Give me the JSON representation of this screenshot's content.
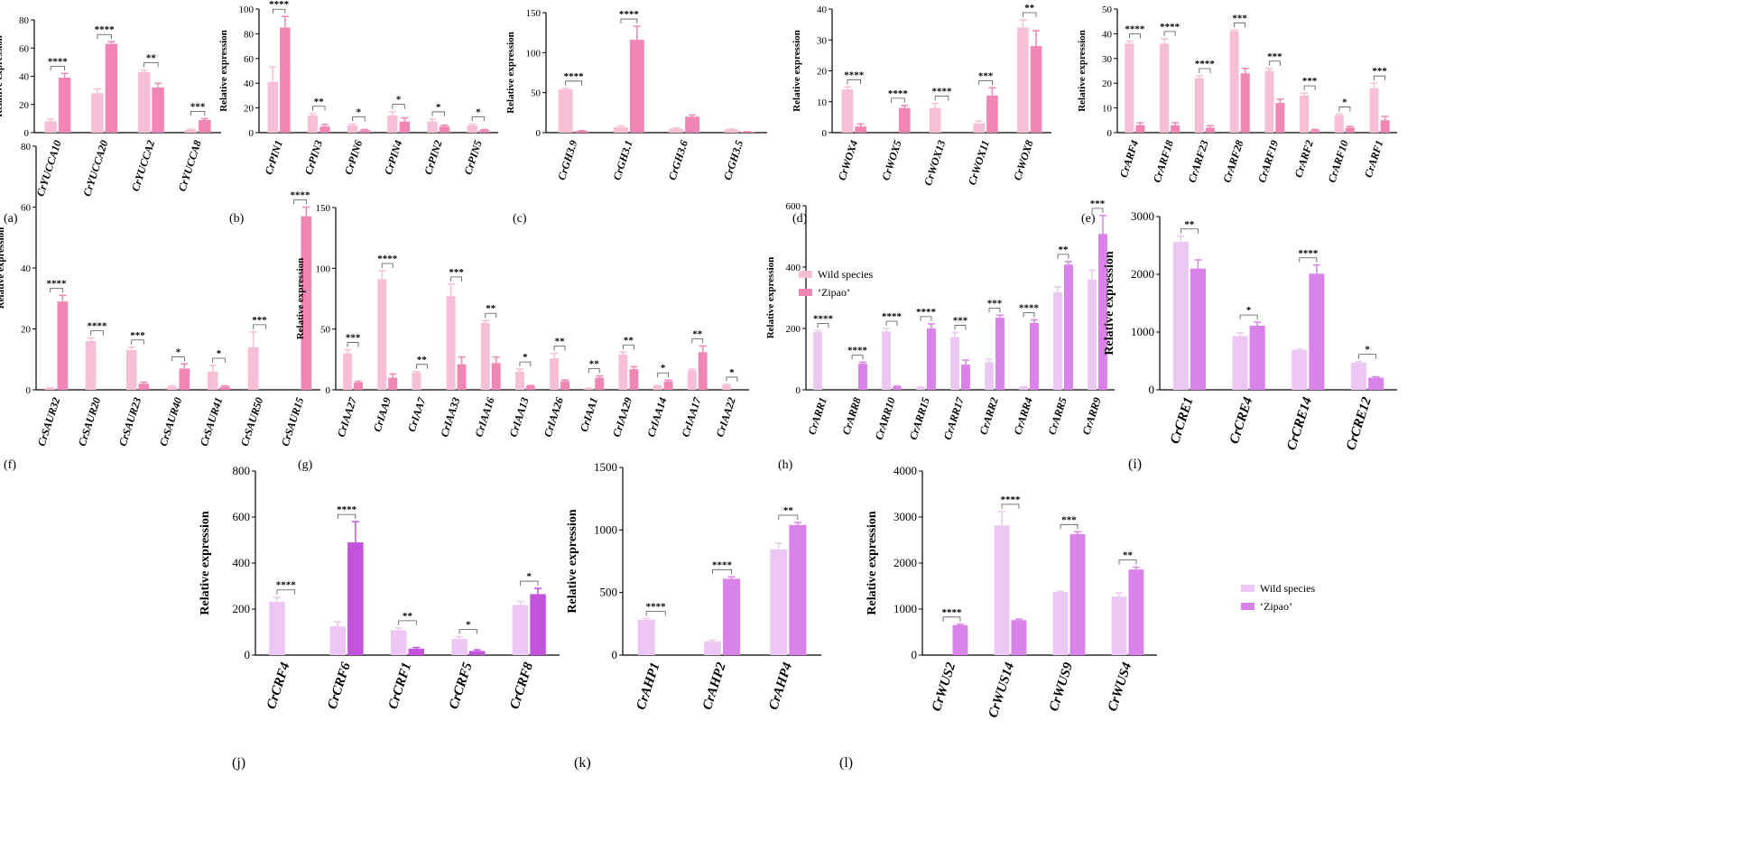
{
  "figure": {
    "colors": {
      "wild_a": "#f7bfd6",
      "zipao_a": "#ef86b3",
      "wild_b": "#ecc7f3",
      "zipao_b": "#d982ea",
      "zipao_j": "#c353da"
    },
    "legends": [
      {
        "wild": "Wild species",
        "zipao": "‘Zipao’"
      },
      {
        "wild": "Wild species",
        "zipao": "‘Zipao’"
      }
    ]
  },
  "chart_data": [
    {
      "id": "a",
      "letter": "(a)",
      "type": "bar",
      "ylabel": "Relative expression",
      "ylim": [
        0,
        80
      ],
      "ticks": [
        0,
        20,
        40,
        60,
        80
      ],
      "categories": [
        "CrYUCCA10",
        "CrYUCCA20",
        "CrYUCCA2",
        "CrYUCCA8"
      ],
      "series": [
        {
          "name": "Wild species",
          "values": [
            8,
            28,
            43,
            2
          ],
          "errors": [
            1.5,
            3,
            1.5,
            0.5
          ]
        },
        {
          "name": "‘Zipao’",
          "values": [
            39,
            63,
            32,
            9
          ],
          "errors": [
            3,
            1.5,
            3,
            1
          ]
        }
      ],
      "significance": [
        "****",
        "****",
        "**",
        "***"
      ]
    },
    {
      "id": "b",
      "letter": "(b)",
      "type": "bar",
      "ylabel": "Relative expression",
      "ylim": [
        0,
        100
      ],
      "ticks": [
        0,
        20,
        40,
        60,
        80,
        100
      ],
      "categories": [
        "CrPIN1",
        "CrPIN3",
        "CrPIN6",
        "CrPIN4",
        "CrPIN2",
        "CrPIN5"
      ],
      "series": [
        {
          "name": "Wild species",
          "values": [
            41,
            14,
            6,
            14,
            9,
            6
          ],
          "errors": [
            12,
            1.5,
            1,
            3,
            2,
            1
          ]
        },
        {
          "name": "‘Zipao’",
          "values": [
            85,
            5,
            2,
            9,
            5,
            2
          ],
          "errors": [
            9,
            1.5,
            0.5,
            3,
            1,
            0.5
          ]
        }
      ],
      "significance": [
        "****",
        "**",
        "*",
        "*",
        "*",
        "*"
      ]
    },
    {
      "id": "c",
      "letter": "(c)",
      "type": "bar",
      "ylabel": "Relative expression",
      "ylim": [
        0,
        150
      ],
      "ticks": [
        0,
        50,
        100,
        150
      ],
      "categories": [
        "CrGH3.9",
        "CrGH3.1",
        "CrGH3.6",
        "CrGH3.5"
      ],
      "series": [
        {
          "name": "Wild species",
          "values": [
            54,
            7,
            5,
            4
          ],
          "errors": [
            1.5,
            1.5,
            1,
            0.5
          ]
        },
        {
          "name": "‘Zipao’",
          "values": [
            2,
            116,
            20,
            1
          ],
          "errors": [
            0.5,
            17,
            2,
            0.3
          ]
        }
      ],
      "significance": [
        "****",
        "****",
        "",
        ""
      ]
    },
    {
      "id": "d",
      "letter": "(d)",
      "type": "bar",
      "ylabel": "Relative expression",
      "ylim": [
        0,
        40
      ],
      "ticks": [
        0,
        10,
        20,
        30,
        40
      ],
      "categories": [
        "CrWOX4",
        "CrWOX5",
        "CrWOX13",
        "CrWOX11",
        "CrWOX8"
      ],
      "series": [
        {
          "name": "Wild species",
          "values": [
            14,
            0,
            8,
            3,
            34
          ],
          "errors": [
            0.8,
            0,
            1.5,
            0.8,
            2.5
          ]
        },
        {
          "name": "‘Zipao’",
          "values": [
            2,
            8,
            0,
            12,
            28
          ],
          "errors": [
            0.8,
            0.8,
            0,
            2.5,
            5
          ]
        }
      ],
      "significance": [
        "****",
        "****",
        "****",
        "***",
        "**"
      ]
    },
    {
      "id": "e",
      "letter": "(e)",
      "type": "bar",
      "ylabel": "Relative expression",
      "ylim": [
        0,
        50
      ],
      "ticks": [
        0,
        10,
        20,
        30,
        40,
        50
      ],
      "categories": [
        "CrARF4",
        "CrARF18",
        "CrARF23",
        "CrARF28",
        "CrARF19",
        "CrARF2",
        "CrARF10",
        "CrARF1"
      ],
      "series": [
        {
          "name": "Wild species",
          "values": [
            36,
            36,
            22,
            41,
            25,
            15,
            7,
            18
          ],
          "errors": [
            1,
            2,
            1,
            0.5,
            1,
            1,
            0.5,
            2
          ]
        },
        {
          "name": "‘Zipao’",
          "values": [
            3,
            3,
            2,
            24,
            12,
            1,
            2,
            5
          ],
          "errors": [
            1,
            1,
            0.8,
            2,
            1.5,
            0.3,
            0.5,
            1.5
          ]
        }
      ],
      "significance": [
        "****",
        "****",
        "****",
        "***",
        "***",
        "***",
        "*",
        "***"
      ]
    },
    {
      "id": "f",
      "letter": "(f)",
      "type": "bar",
      "ylabel": "Relative expression",
      "ylim": [
        0,
        80
      ],
      "ticks": [
        0,
        20,
        40,
        60,
        80
      ],
      "categories": [
        "CrSAUR32",
        "CrSAUR20",
        "CrSAUR23",
        "CrSAUR40",
        "CrSAUR41",
        "CrSAUR50",
        "CrSAUR15"
      ],
      "series": [
        {
          "name": "Wild species",
          "values": [
            0.5,
            16,
            13,
            1,
            6,
            14,
            0
          ],
          "errors": [
            0.2,
            1,
            1,
            0.3,
            2,
            5,
            0
          ]
        },
        {
          "name": "‘Zipao’",
          "values": [
            29,
            0,
            2,
            7,
            1,
            0,
            57
          ],
          "errors": [
            2,
            0,
            0.5,
            1.5,
            0.3,
            0,
            3
          ]
        }
      ],
      "significance": [
        "****",
        "****",
        "***",
        "*",
        "*",
        "***",
        "****"
      ]
    },
    {
      "id": "g",
      "letter": "(g)",
      "type": "bar",
      "ylabel": "Relative expression",
      "ylim": [
        0,
        150
      ],
      "ticks": [
        0,
        50,
        100,
        150
      ],
      "categories": [
        "CrIAA27",
        "CrIAA9",
        "CrIAA7",
        "CrIAA33",
        "CrIAA16",
        "CrIAA13",
        "CrIAA26",
        "CrIAA1",
        "CrIAA29",
        "CrIAA14",
        "CrIAA17",
        "CrIAA22"
      ],
      "series": [
        {
          "name": "Wild species",
          "values": [
            30,
            91,
            14,
            77,
            55,
            15,
            26,
            1,
            29,
            3,
            16,
            4
          ],
          "errors": [
            3,
            7,
            1,
            10,
            2,
            2,
            4,
            0.3,
            2,
            0.5,
            1,
            0.5
          ]
        },
        {
          "name": "‘Zipao’",
          "values": [
            6,
            10,
            0,
            21,
            22,
            3,
            7,
            10,
            17,
            7,
            31,
            0
          ],
          "errors": [
            1,
            3,
            0,
            6,
            5,
            0.5,
            1,
            1.5,
            2,
            1,
            5,
            0
          ]
        }
      ],
      "significance": [
        "***",
        "****",
        "**",
        "***",
        "**",
        "*",
        "**",
        "**",
        "**",
        "*",
        "**",
        "*"
      ]
    },
    {
      "id": "h",
      "letter": "(h)",
      "type": "bar",
      "ylabel": "Relative expression",
      "ylim": [
        0,
        600
      ],
      "ticks": [
        0,
        200,
        400,
        600
      ],
      "categories": [
        "CrARR1",
        "CrARR8",
        "CrARR10",
        "CrARR15",
        "CrARR17",
        "CrARR2",
        "CrARR4",
        "CrARR5",
        "CrARR9"
      ],
      "series": [
        {
          "name": "Wild species",
          "values": [
            188,
            0,
            190,
            8,
            172,
            90,
            8,
            318,
            360
          ],
          "errors": [
            5,
            0,
            10,
            2,
            15,
            10,
            2,
            18,
            30
          ]
        },
        {
          "name": "‘Zipao’",
          "values": [
            0,
            85,
            10,
            200,
            82,
            235,
            218,
            408,
            508
          ],
          "errors": [
            0,
            5,
            2,
            15,
            15,
            8,
            10,
            10,
            60
          ]
        }
      ],
      "significance": [
        "****",
        "****",
        "****",
        "****",
        "***",
        "***",
        "****",
        "**",
        "***"
      ]
    },
    {
      "id": "i",
      "letter": "(i)",
      "type": "bar",
      "ylabel": "Relative expression",
      "ylim": [
        0,
        3000
      ],
      "ticks": [
        0,
        1000,
        2000,
        3000
      ],
      "categories": [
        "CrCRE1",
        "CrCRE4",
        "CrCRE14",
        "CrCRE12"
      ],
      "series": [
        {
          "name": "Wild species",
          "values": [
            2560,
            930,
            690,
            470
          ],
          "errors": [
            100,
            60,
            15,
            20
          ]
        },
        {
          "name": "‘Zipao’",
          "values": [
            2100,
            1110,
            2010,
            210
          ],
          "errors": [
            150,
            60,
            150,
            15
          ]
        }
      ],
      "significance": [
        "**",
        "*",
        "****",
        "*"
      ]
    },
    {
      "id": "j",
      "letter": "(j)",
      "type": "bar",
      "ylabel": "Relative expression",
      "ylim": [
        0,
        800
      ],
      "ticks": [
        0,
        200,
        400,
        600,
        800
      ],
      "categories": [
        "CrCRF4",
        "CrCRF6",
        "CrCRF1",
        "CrCRF5",
        "CrCRF8"
      ],
      "series": [
        {
          "name": "Wild species",
          "values": [
            232,
            125,
            108,
            70,
            218
          ],
          "errors": [
            20,
            20,
            10,
            10,
            15
          ]
        },
        {
          "name": "‘Zipao’",
          "values": [
            0,
            490,
            28,
            18,
            265
          ],
          "errors": [
            0,
            90,
            5,
            5,
            25
          ]
        }
      ],
      "significance": [
        "****",
        "****",
        "**",
        "*",
        "*"
      ]
    },
    {
      "id": "k",
      "letter": "(k)",
      "type": "bar",
      "ylabel": "Relative expression",
      "ylim": [
        0,
        1500
      ],
      "ticks": [
        0,
        500,
        1000,
        1500
      ],
      "categories": [
        "CrAHP1",
        "CrAHP2",
        "CrAHP4"
      ],
      "series": [
        {
          "name": "Wild species",
          "values": [
            282,
            110,
            845
          ],
          "errors": [
            10,
            10,
            50
          ]
        },
        {
          "name": "‘Zipao’",
          "values": [
            0,
            610,
            1040
          ],
          "errors": [
            0,
            15,
            20
          ]
        }
      ],
      "significance": [
        "****",
        "****",
        "**"
      ]
    },
    {
      "id": "l",
      "letter": "(l)",
      "type": "bar",
      "ylabel": "Relative expression",
      "ylim": [
        0,
        4000
      ],
      "ticks": [
        0,
        1000,
        2000,
        3000,
        4000
      ],
      "categories": [
        "CrWUS2",
        "CrWUS14",
        "CrWUS9",
        "CrWUS4"
      ],
      "series": [
        {
          "name": "Wild species",
          "values": [
            0,
            2820,
            1370,
            1270
          ],
          "errors": [
            0,
            300,
            20,
            80
          ]
        },
        {
          "name": "‘Zipao’",
          "values": [
            650,
            760,
            2630,
            1860
          ],
          "errors": [
            20,
            20,
            50,
            50
          ]
        }
      ],
      "significance": [
        "****",
        "****",
        "***",
        "**"
      ]
    }
  ]
}
